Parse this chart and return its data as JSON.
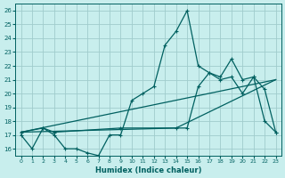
{
  "xlabel": "Humidex (Indice chaleur)",
  "bg_color": "#c8eeed",
  "grid_color": "#a0cccc",
  "line_color": "#006060",
  "xlim": [
    -0.5,
    23.5
  ],
  "ylim": [
    15.5,
    26.5
  ],
  "xticks": [
    0,
    1,
    2,
    3,
    4,
    5,
    6,
    7,
    8,
    9,
    10,
    11,
    12,
    13,
    14,
    15,
    16,
    17,
    18,
    19,
    20,
    21,
    22,
    23
  ],
  "yticks": [
    16,
    17,
    18,
    19,
    20,
    21,
    22,
    23,
    24,
    25,
    26
  ],
  "line1_x": [
    0,
    1,
    2,
    3,
    4,
    5,
    6,
    7,
    8,
    9,
    10,
    11,
    12,
    13,
    14,
    15,
    16,
    17,
    18,
    19,
    20,
    21,
    22,
    23
  ],
  "line1_y": [
    17.0,
    16.0,
    17.5,
    17.0,
    16.0,
    16.0,
    15.7,
    15.5,
    17.0,
    17.0,
    19.5,
    20.0,
    20.5,
    23.5,
    24.5,
    26.0,
    22.0,
    21.5,
    21.0,
    21.2,
    20.0,
    21.2,
    18.0,
    17.2
  ],
  "line2_x": [
    0,
    2,
    3,
    9,
    14,
    15,
    16,
    17,
    18,
    19,
    20,
    21,
    22,
    23
  ],
  "line2_y": [
    17.2,
    17.5,
    17.2,
    17.5,
    17.5,
    17.5,
    20.5,
    21.5,
    21.2,
    22.5,
    21.0,
    21.2,
    20.3,
    17.2
  ],
  "line3_x": [
    0,
    14,
    23
  ],
  "line3_y": [
    17.2,
    17.5,
    21.0
  ],
  "line4_x": [
    0,
    23
  ],
  "line4_y": [
    17.2,
    21.0
  ]
}
